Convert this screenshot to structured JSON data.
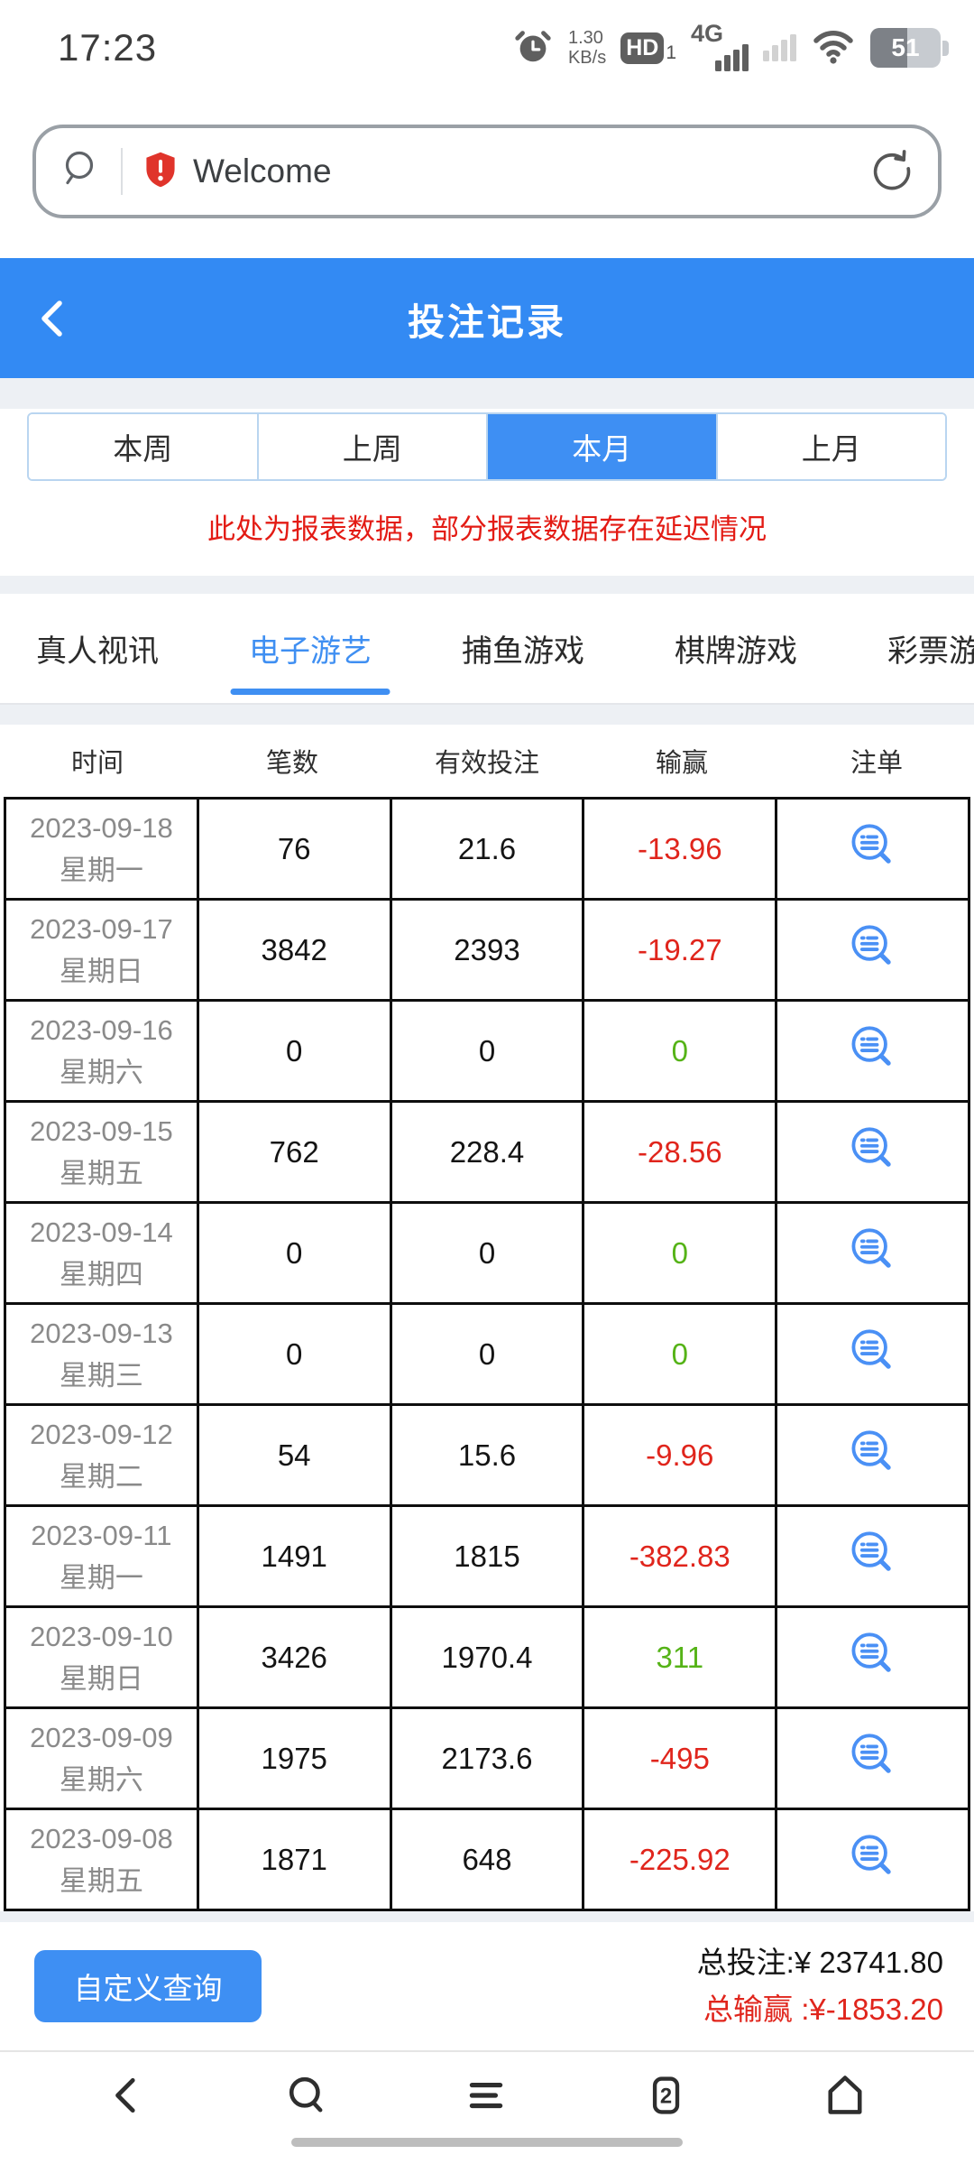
{
  "colors": {
    "header_blue": "#338af3",
    "accent_blue": "#3e8ff3",
    "loss_red": "#e0251c",
    "win_green": "#55b317",
    "notice_red": "#e31b14"
  },
  "status_bar": {
    "time": "17:23",
    "net_speed_value": "1.30",
    "net_speed_unit": "KB/s",
    "hd_label": "HD",
    "hd_sub": "1",
    "network_type": "4G",
    "battery_percent": "51",
    "icons": [
      "alarm-icon",
      "hd-voice-icon",
      "signal-bars-sim1",
      "signal-bars-sim2",
      "wifi-icon",
      "battery-icon"
    ]
  },
  "address_bar": {
    "site_title": "Welcome",
    "icons": [
      "search-icon",
      "security-shield-icon",
      "refresh-icon"
    ]
  },
  "app_header": {
    "title": "投注记录"
  },
  "period_tabs": [
    {
      "label": "本周",
      "active": false
    },
    {
      "label": "上周",
      "active": false
    },
    {
      "label": "本月",
      "active": true
    },
    {
      "label": "上月",
      "active": false
    }
  ],
  "notice": "此处为报表数据，部分报表数据存在延迟情况",
  "category_tabs": [
    {
      "label": "真人视讯",
      "active": false
    },
    {
      "label": "电子游艺",
      "active": true
    },
    {
      "label": "捕鱼游戏",
      "active": false
    },
    {
      "label": "棋牌游戏",
      "active": false
    },
    {
      "label": "彩票游戏",
      "active": false
    }
  ],
  "table": {
    "headers": [
      "时间",
      "笔数",
      "有效投注",
      "输赢",
      "注单"
    ],
    "rows": [
      {
        "date": "2023-09-18",
        "weekday": "星期一",
        "count": "76",
        "valid_bet": "21.6",
        "win_loss": "-13.96",
        "tone": "loss"
      },
      {
        "date": "2023-09-17",
        "weekday": "星期日",
        "count": "3842",
        "valid_bet": "2393",
        "win_loss": "-19.27",
        "tone": "loss"
      },
      {
        "date": "2023-09-16",
        "weekday": "星期六",
        "count": "0",
        "valid_bet": "0",
        "win_loss": "0",
        "tone": "win"
      },
      {
        "date": "2023-09-15",
        "weekday": "星期五",
        "count": "762",
        "valid_bet": "228.4",
        "win_loss": "-28.56",
        "tone": "loss"
      },
      {
        "date": "2023-09-14",
        "weekday": "星期四",
        "count": "0",
        "valid_bet": "0",
        "win_loss": "0",
        "tone": "win"
      },
      {
        "date": "2023-09-13",
        "weekday": "星期三",
        "count": "0",
        "valid_bet": "0",
        "win_loss": "0",
        "tone": "win"
      },
      {
        "date": "2023-09-12",
        "weekday": "星期二",
        "count": "54",
        "valid_bet": "15.6",
        "win_loss": "-9.96",
        "tone": "loss"
      },
      {
        "date": "2023-09-11",
        "weekday": "星期一",
        "count": "1491",
        "valid_bet": "1815",
        "win_loss": "-382.83",
        "tone": "loss"
      },
      {
        "date": "2023-09-10",
        "weekday": "星期日",
        "count": "3426",
        "valid_bet": "1970.4",
        "win_loss": "311",
        "tone": "win"
      },
      {
        "date": "2023-09-09",
        "weekday": "星期六",
        "count": "1975",
        "valid_bet": "2173.6",
        "win_loss": "-495",
        "tone": "loss"
      },
      {
        "date": "2023-09-08",
        "weekday": "星期五",
        "count": "1871",
        "valid_bet": "648",
        "win_loss": "-225.92",
        "tone": "loss"
      }
    ]
  },
  "footer": {
    "query_button": "自定义查询",
    "total_bet_label": "总投注:¥ 23741.80",
    "total_winloss_label": "总输赢 :¥-1853.20"
  },
  "bottom_nav": {
    "tab_count": "2",
    "icons": [
      "nav-back-icon",
      "nav-search-icon",
      "nav-menu-icon",
      "nav-tabs-icon",
      "nav-home-icon"
    ]
  }
}
